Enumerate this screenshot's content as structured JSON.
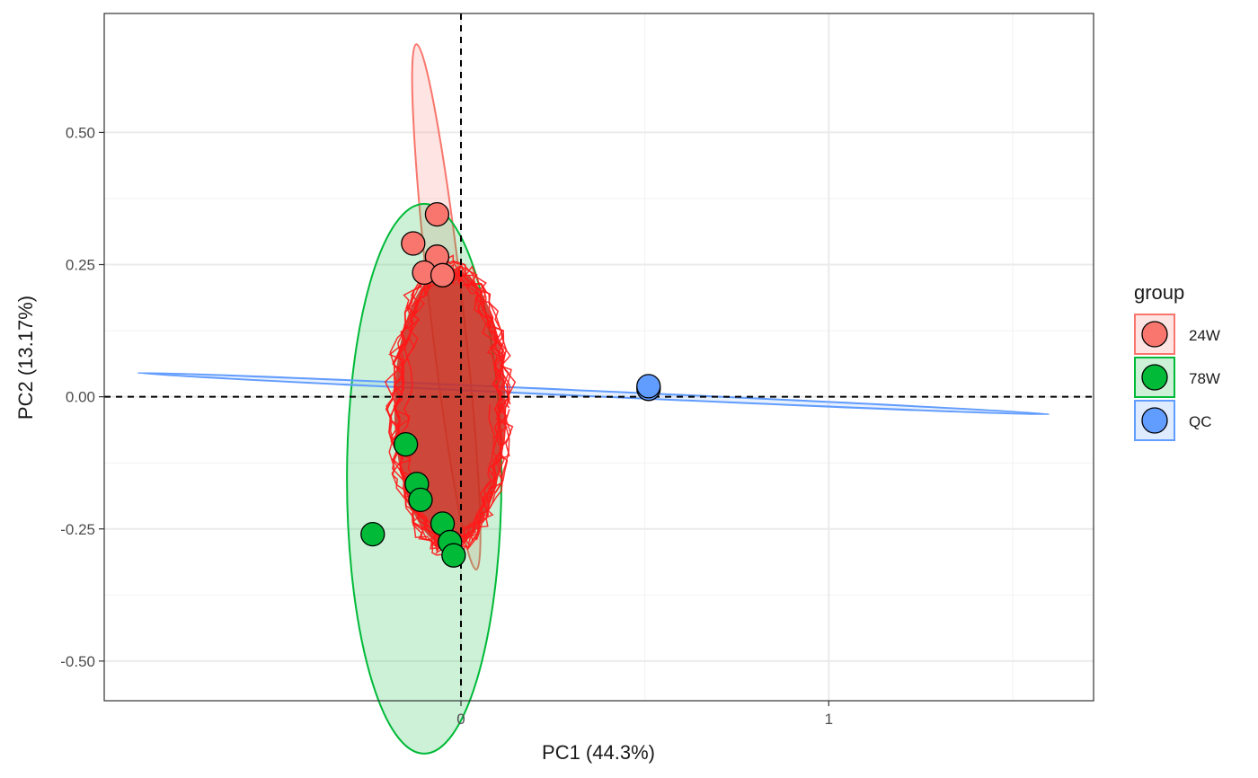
{
  "chart_data": {
    "type": "scatter",
    "xlabel": "PC1 (44.3%)",
    "ylabel": "PC2 (13.17%)",
    "xlim": [
      -0.97,
      1.72
    ],
    "ylim": [
      -0.575,
      0.725
    ],
    "x_ticks": [
      0,
      1
    ],
    "x_tick_labels": [
      "0",
      "1"
    ],
    "y_ticks": [
      0.5,
      0.25,
      0.0,
      -0.25,
      -0.5
    ],
    "y_tick_labels": [
      "0.50",
      "0.25",
      "0.00",
      "-0.25",
      "-0.50"
    ],
    "grid": true,
    "reference_lines": {
      "x": 0,
      "y": 0,
      "style": "dashed"
    },
    "legend": {
      "title": "group",
      "position": "right",
      "items": [
        {
          "label": "24W",
          "color": "#F8766D"
        },
        {
          "label": "78W",
          "color": "#00BA38"
        },
        {
          "label": "QC",
          "color": "#619CFF"
        }
      ]
    },
    "series": [
      {
        "name": "24W",
        "color": "#F8766D",
        "points": [
          {
            "x": -0.065,
            "y": 0.345
          },
          {
            "x": -0.13,
            "y": 0.29
          },
          {
            "x": -0.065,
            "y": 0.265
          },
          {
            "x": -0.1,
            "y": 0.235
          },
          {
            "x": -0.05,
            "y": 0.23
          }
        ],
        "ellipse": {
          "cx": -0.04,
          "cy": 0.17,
          "rx": 0.045,
          "ry": 0.5,
          "rotation_deg": -6.5
        }
      },
      {
        "name": "78W",
        "color": "#00BA38",
        "points": [
          {
            "x": -0.15,
            "y": -0.09
          },
          {
            "x": -0.12,
            "y": -0.165
          },
          {
            "x": -0.11,
            "y": -0.195
          },
          {
            "x": -0.05,
            "y": -0.24
          },
          {
            "x": -0.03,
            "y": -0.275
          },
          {
            "x": -0.02,
            "y": -0.3
          },
          {
            "x": -0.24,
            "y": -0.26
          }
        ],
        "ellipse": {
          "cx": -0.1,
          "cy": -0.155,
          "rx": 0.21,
          "ry": 0.52,
          "rotation_deg": 0
        }
      },
      {
        "name": "QC",
        "color": "#619CFF",
        "points": [
          {
            "x": 0.51,
            "y": 0.015
          },
          {
            "x": 0.51,
            "y": 0.02
          }
        ],
        "ellipse": {
          "cx": 0.36,
          "cy": 0.006,
          "rx": 1.24,
          "ry": 0.003,
          "rotation_deg": 2.6
        }
      }
    ]
  }
}
